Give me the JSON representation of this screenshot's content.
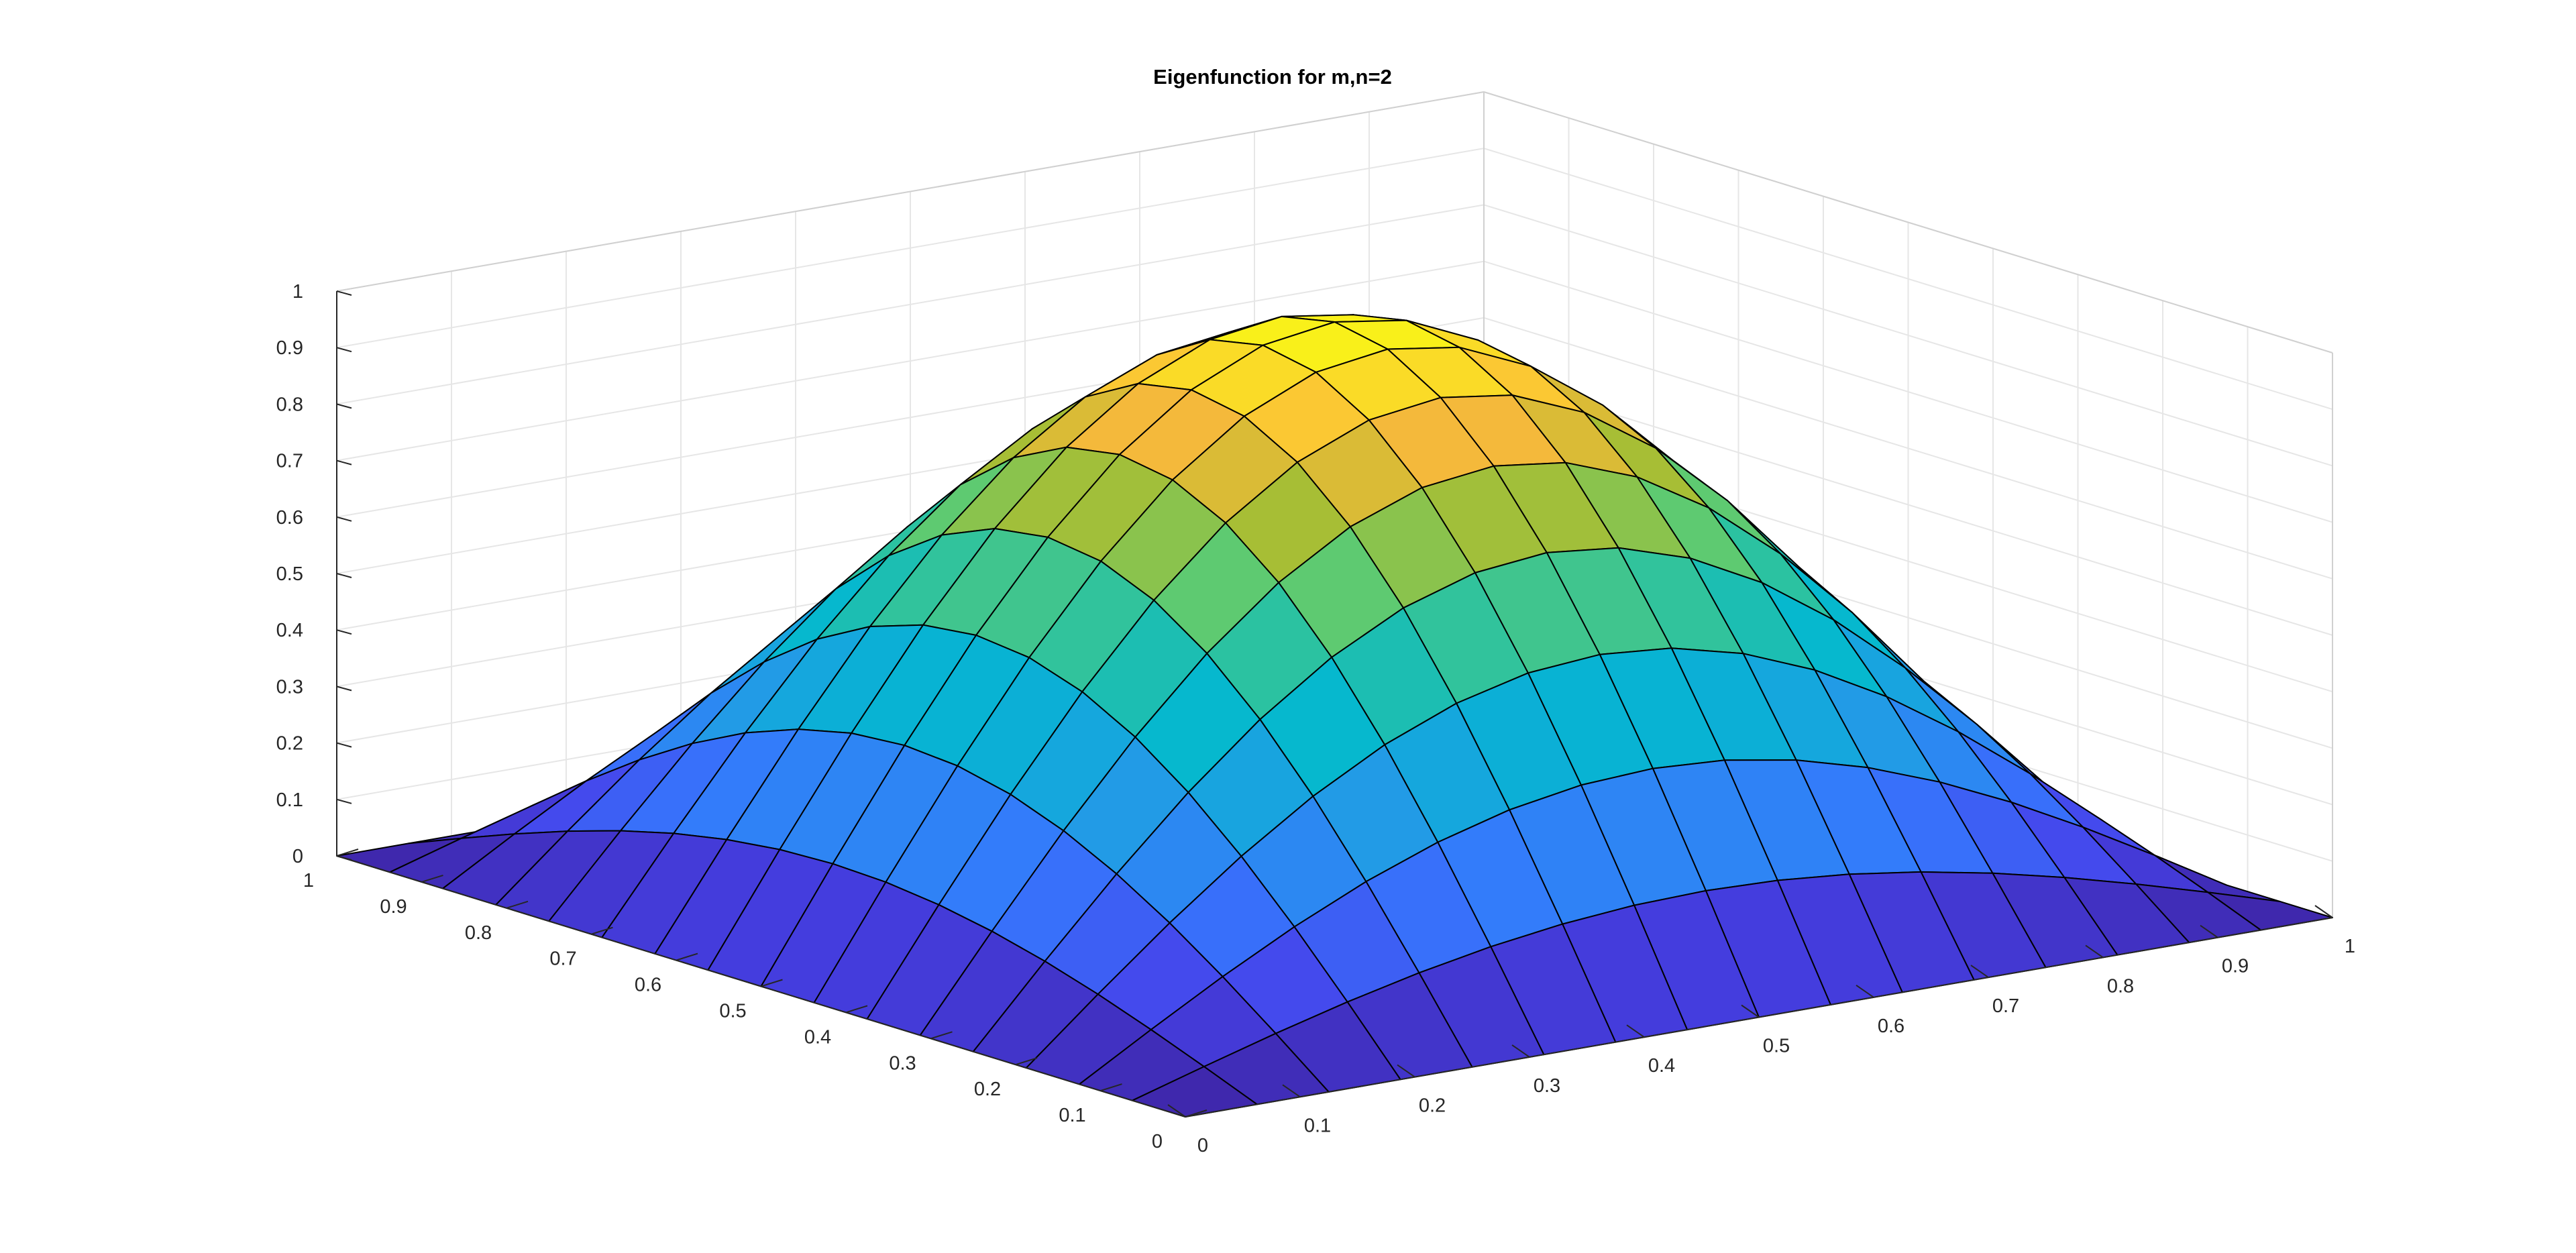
{
  "chart_data": {
    "type": "surface",
    "title": "Eigenfunction for m,n=2",
    "xlabel": "",
    "ylabel": "",
    "zlabel": "",
    "function": "sin(pi*x)*sin(pi*y)",
    "x": [
      0,
      0.0625,
      0.125,
      0.1875,
      0.25,
      0.3125,
      0.375,
      0.4375,
      0.5,
      0.5625,
      0.625,
      0.6875,
      0.75,
      0.8125,
      0.875,
      0.9375,
      1
    ],
    "y": [
      0,
      0.0625,
      0.125,
      0.1875,
      0.25,
      0.3125,
      0.375,
      0.4375,
      0.5,
      0.5625,
      0.625,
      0.6875,
      0.75,
      0.8125,
      0.875,
      0.9375,
      1
    ],
    "xlim": [
      0,
      1
    ],
    "ylim": [
      0,
      1
    ],
    "zlim": [
      0,
      1
    ],
    "x_ticks": [
      "0",
      "0.1",
      "0.2",
      "0.3",
      "0.4",
      "0.5",
      "0.6",
      "0.7",
      "0.8",
      "0.9",
      "1"
    ],
    "y_ticks": [
      "0",
      "0.1",
      "0.2",
      "0.3",
      "0.4",
      "0.5",
      "0.6",
      "0.7",
      "0.8",
      "0.9",
      "1"
    ],
    "z_ticks": [
      "0",
      "0.1",
      "0.2",
      "0.3",
      "0.4",
      "0.5",
      "0.6",
      "0.7",
      "0.8",
      "0.9",
      "1"
    ],
    "grid": true,
    "edge_color": "#000000",
    "colormap": "parula"
  }
}
